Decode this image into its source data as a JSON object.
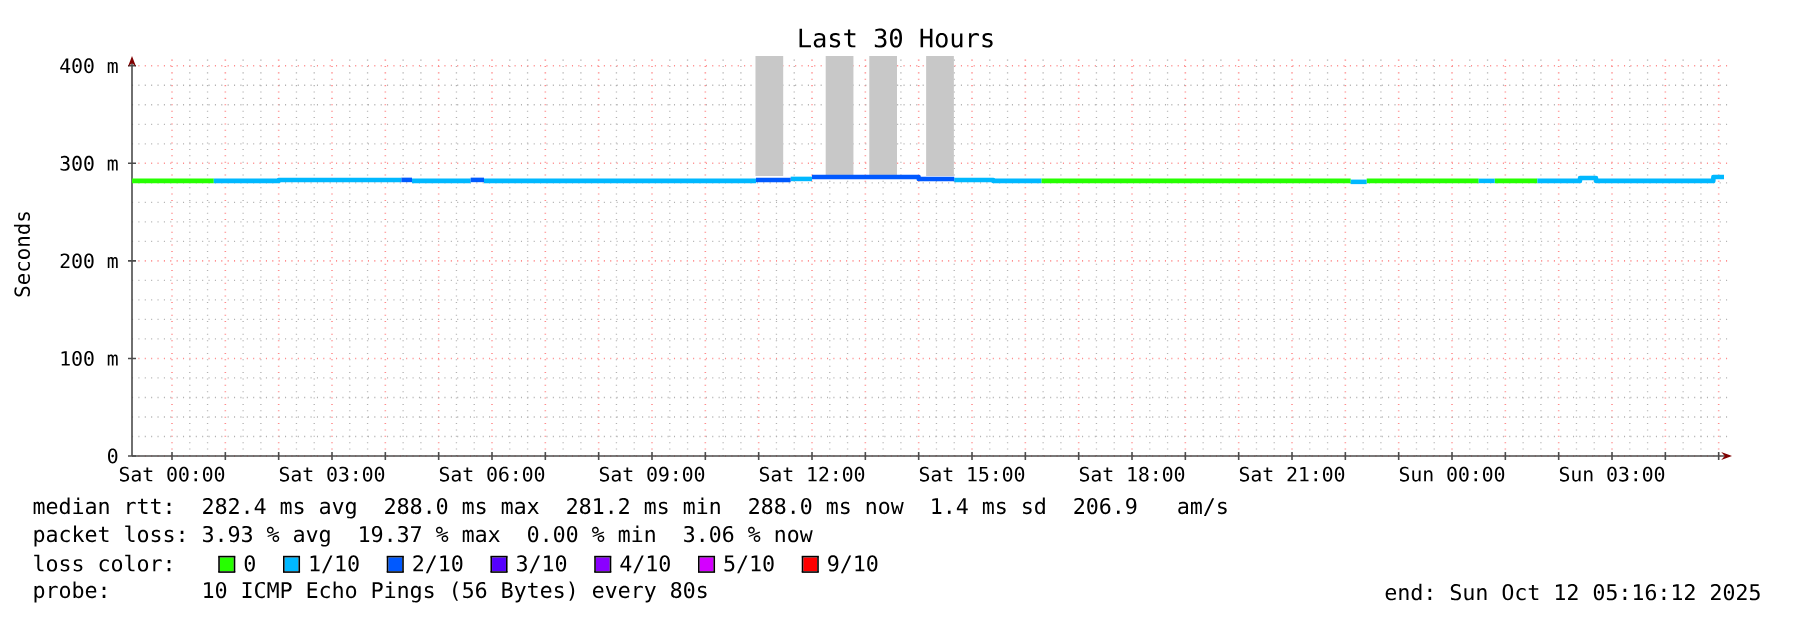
{
  "chart_data": {
    "type": "step",
    "title": "Last 30 Hours",
    "ylabel": "Seconds",
    "legend_title": "loss color:",
    "legend": "bottom",
    "grid": true,
    "xlim": [
      "2025-10-10T23:15",
      "2025-10-12T05:15"
    ],
    "ylim": [
      0,
      410
    ],
    "xticks": [
      {
        "value": "2025-10-11T00:00",
        "label": "Sat 00:00"
      },
      {
        "value": "2025-10-11T01:00",
        "label": null
      },
      {
        "value": "2025-10-11T02:00",
        "label": null
      },
      {
        "value": "2025-10-11T03:00",
        "label": "Sat 03:00"
      },
      {
        "value": "2025-10-11T04:00",
        "label": null
      },
      {
        "value": "2025-10-11T05:00",
        "label": null
      },
      {
        "value": "2025-10-11T06:00",
        "label": "Sat 06:00"
      },
      {
        "value": "2025-10-11T07:00",
        "label": null
      },
      {
        "value": "2025-10-11T08:00",
        "label": null
      },
      {
        "value": "2025-10-11T09:00",
        "label": "Sat 09:00"
      },
      {
        "value": "2025-10-11T10:00",
        "label": null
      },
      {
        "value": "2025-10-11T11:00",
        "label": null
      },
      {
        "value": "2025-10-11T12:00",
        "label": "Sat 12:00"
      },
      {
        "value": "2025-10-11T13:00",
        "label": null
      },
      {
        "value": "2025-10-11T14:00",
        "label": null
      },
      {
        "value": "2025-10-11T15:00",
        "label": "Sat 15:00"
      },
      {
        "value": "2025-10-11T16:00",
        "label": null
      },
      {
        "value": "2025-10-11T17:00",
        "label": null
      },
      {
        "value": "2025-10-11T18:00",
        "label": "Sat 18:00"
      },
      {
        "value": "2025-10-11T19:00",
        "label": null
      },
      {
        "value": "2025-10-11T20:00",
        "label": null
      },
      {
        "value": "2025-10-11T21:00",
        "label": "Sat 21:00"
      },
      {
        "value": "2025-10-11T22:00",
        "label": null
      },
      {
        "value": "2025-10-11T23:00",
        "label": null
      },
      {
        "value": "2025-10-12T00:00",
        "label": "Sun 00:00"
      },
      {
        "value": "2025-10-12T01:00",
        "label": null
      },
      {
        "value": "2025-10-12T02:00",
        "label": null
      },
      {
        "value": "2025-10-12T03:00",
        "label": "Sun 03:00"
      },
      {
        "value": "2025-10-12T04:00",
        "label": null
      },
      {
        "value": "2025-10-12T05:00",
        "label": null
      }
    ],
    "yticks": [
      0,
      {
        "value": 100,
        "label": "100 m"
      },
      {
        "value": 200,
        "label": "200 m"
      },
      {
        "value": 300,
        "label": "300 m"
      },
      {
        "value": 400,
        "label": "400 m"
      }
    ],
    "series": [
      {
        "type": "bar",
        "color": "#c8c8c8",
        "x": [
          "2025-10-11T11:12",
          "2025-10-11T12:31",
          "2025-10-11T13:20",
          "2025-10-11T14:24"
        ],
        "base": [
          287,
          287,
          287,
          287
        ],
        "values": [
          123,
          123,
          123,
          123
        ]
      },
      {
        "name": "0",
        "color": "#26ff00",
        "x": [
          "2025-10-10T23:15",
          "2025-10-11T00:47"
        ],
        "values": [
          282,
          282
        ]
      },
      {
        "color": "#26ff00",
        "x": [
          "2025-10-11T16:18",
          "2025-10-11T18:00",
          "2025-10-11T20:00",
          "2025-10-11T22:06"
        ],
        "values": [
          282,
          282,
          282,
          282
        ]
      },
      {
        "color": "#26ff00",
        "x": [
          "2025-10-11T22:24",
          "2025-10-12T00:30"
        ],
        "values": [
          282,
          282
        ]
      },
      {
        "color": "#26ff00",
        "x": [
          "2025-10-12T00:48",
          "2025-10-12T01:36"
        ],
        "values": [
          282,
          282
        ]
      },
      {
        "name": "1/10",
        "color": "#00b8ff",
        "x": [
          "2025-10-11T00:47",
          "2025-10-11T02:00",
          "2025-10-11T03:00",
          "2025-10-11T04:18"
        ],
        "values": [
          282,
          283,
          283,
          283
        ]
      },
      {
        "color": "#00b8ff",
        "x": [
          "2025-10-11T04:30",
          "2025-10-11T05:36"
        ],
        "values": [
          282,
          282
        ]
      },
      {
        "color": "#00b8ff",
        "x": [
          "2025-10-11T05:51",
          "2025-10-11T07:00",
          "2025-10-11T09:00",
          "2025-10-11T10:57"
        ],
        "values": [
          282,
          282,
          282,
          282
        ]
      },
      {
        "color": "#00b8ff",
        "x": [
          "2025-10-11T11:36",
          "2025-10-11T12:00"
        ],
        "values": [
          284,
          284
        ]
      },
      {
        "color": "#00b8ff",
        "x": [
          "2025-10-11T14:40",
          "2025-10-11T15:24",
          "2025-10-11T16:18"
        ],
        "values": [
          283,
          282,
          282
        ]
      },
      {
        "color": "#00b8ff",
        "x": [
          "2025-10-11T22:06",
          "2025-10-11T22:24"
        ],
        "values": [
          281,
          281
        ]
      },
      {
        "color": "#00b8ff",
        "x": [
          "2025-10-12T00:30",
          "2025-10-12T00:48"
        ],
        "values": [
          282,
          282
        ]
      },
      {
        "color": "#00b8ff",
        "x": [
          "2025-10-12T01:36",
          "2025-10-12T02:24",
          "2025-10-12T02:42",
          "2025-10-12T04:54",
          "2025-10-12T05:06"
        ],
        "values": [
          282,
          285,
          282,
          286,
          286
        ]
      },
      {
        "name": "2/10",
        "color": "#0059ff",
        "x": [
          "2025-10-11T04:18",
          "2025-10-11T04:30"
        ],
        "values": [
          283,
          283
        ]
      },
      {
        "color": "#0059ff",
        "x": [
          "2025-10-11T05:36",
          "2025-10-11T05:51"
        ],
        "values": [
          283,
          283
        ]
      },
      {
        "color": "#0059ff",
        "x": [
          "2025-10-11T10:57",
          "2025-10-11T11:36"
        ],
        "values": [
          283,
          283
        ]
      },
      {
        "color": "#0059ff",
        "x": [
          "2025-10-11T12:00",
          "2025-10-11T12:30",
          "2025-10-11T13:12",
          "2025-10-11T14:00",
          "2025-10-11T14:40"
        ],
        "values": [
          286,
          286,
          286,
          284,
          284
        ]
      },
      {
        "name": "3/10",
        "color": "#5500ff"
      },
      {
        "name": "4/10",
        "color": "#8a00ff"
      },
      {
        "name": "5/10",
        "color": "#d400ff"
      },
      {
        "name": "9/10",
        "color": "#ff0000"
      }
    ],
    "annotations": [
      "median rtt:  282.4 ms avg  288.0 ms max  281.2 ms min  288.0 ms now  1.4 ms sd  206.9   am/s",
      "packet loss: 3.93 % avg  19.37 % max  0.00 % min  3.06 % now",
      "probe:       10 ICMP Echo Pings (56 Bytes) every 80s",
      "end: Sun Oct 12 05:16:12 2025"
    ]
  }
}
